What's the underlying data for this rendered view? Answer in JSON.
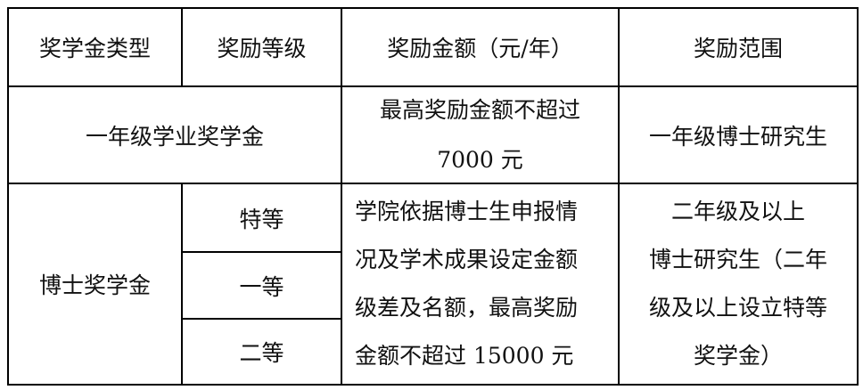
{
  "table": {
    "headers": [
      "奖学金类型",
      "奖励等级",
      "奖励金额（元/年）",
      "奖励范围"
    ],
    "row1": {
      "type": "一年级学业奖学金",
      "amount_lines": [
        "最高奖励金额不超过",
        "7000 元"
      ],
      "scope": "一年级博士研究生"
    },
    "row2": {
      "type": "博士奖学金",
      "levels": [
        "特等",
        "一等",
        "二等"
      ],
      "amount_lines": [
        "学院依据博士生申报情",
        "况及学术成果设定金额",
        "级差及名额，最高奖励",
        "金额不超过 15000 元"
      ],
      "scope_lines": [
        "二年级及以上",
        "博士研究生（二年",
        "级及以上设立特等",
        "奖学金）"
      ]
    }
  }
}
